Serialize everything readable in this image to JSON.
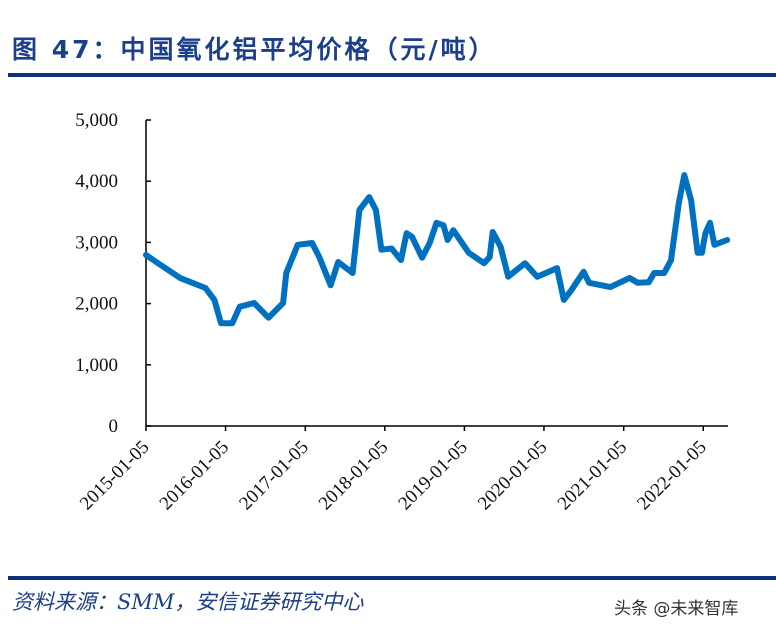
{
  "title": "图 47：中国氧化铝平均价格（元/吨）",
  "source": "资料来源：SMM，安信证券研究中心",
  "watermark": "头条 @未来智库",
  "colors": {
    "line": "#0070c0",
    "title": "#1b3f8b",
    "rule": "#0d2f7d"
  },
  "chart_data": {
    "type": "line",
    "title": "",
    "xlabel": "",
    "ylabel": "",
    "ylim": [
      0,
      5000
    ],
    "yticks": [
      0,
      1000,
      2000,
      3000,
      4000,
      5000
    ],
    "ytick_labels": [
      "0",
      "1,000",
      "2,000",
      "3,000",
      "4,000",
      "5,000"
    ],
    "xticks": [
      "2015-01-05",
      "2016-01-05",
      "2017-01-05",
      "2018-01-05",
      "2019-01-05",
      "2020-01-05",
      "2021-01-05",
      "2022-01-05"
    ],
    "grid": false,
    "legend": "none",
    "series": [
      {
        "x": [
          "2015-01-05",
          "2015-03-01",
          "2015-06-10",
          "2015-10-05",
          "2015-11-15",
          "2015-12-15",
          "2016-02-05",
          "2016-03-10",
          "2016-05-15",
          "2016-07-20",
          "2016-09-25",
          "2016-10-10",
          "2016-12-01",
          "2017-02-05",
          "2017-03-10",
          "2017-05-01",
          "2017-06-05",
          "2017-08-10",
          "2017-09-10",
          "2017-10-25",
          "2017-11-25",
          "2017-12-20",
          "2018-02-05",
          "2018-03-20",
          "2018-04-15",
          "2018-05-10",
          "2018-06-25",
          "2018-07-30",
          "2018-08-30",
          "2018-10-01",
          "2018-10-20",
          "2018-11-15",
          "2019-01-25",
          "2019-04-05",
          "2019-05-01",
          "2019-05-15",
          "2019-06-20",
          "2019-07-25",
          "2019-10-10",
          "2019-12-05",
          "2020-03-05",
          "2020-04-05",
          "2020-05-10",
          "2020-07-05",
          "2020-07-30",
          "2020-11-05",
          "2021-02-01",
          "2021-03-10",
          "2021-04-30",
          "2021-05-25",
          "2021-07-10",
          "2021-08-10",
          "2021-09-15",
          "2021-10-10",
          "2021-11-10",
          "2021-12-10",
          "2021-12-30",
          "2022-01-15",
          "2022-02-05",
          "2022-02-25",
          "2022-04-25"
        ],
        "y": [
          2794,
          2660,
          2420,
          2255,
          2060,
          1680,
          1680,
          1950,
          2010,
          1770,
          2010,
          2500,
          2960,
          2990,
          2760,
          2300,
          2680,
          2500,
          3530,
          3740,
          3530,
          2880,
          2900,
          2710,
          3150,
          3090,
          2750,
          2990,
          3320,
          3280,
          3040,
          3200,
          2830,
          2660,
          2760,
          3170,
          2930,
          2440,
          2660,
          2440,
          2580,
          2060,
          2220,
          2520,
          2340,
          2270,
          2420,
          2340,
          2350,
          2500,
          2500,
          2710,
          3640,
          4100,
          3690,
          2830,
          2830,
          3150,
          3320,
          2960,
          3040
        ]
      }
    ]
  }
}
